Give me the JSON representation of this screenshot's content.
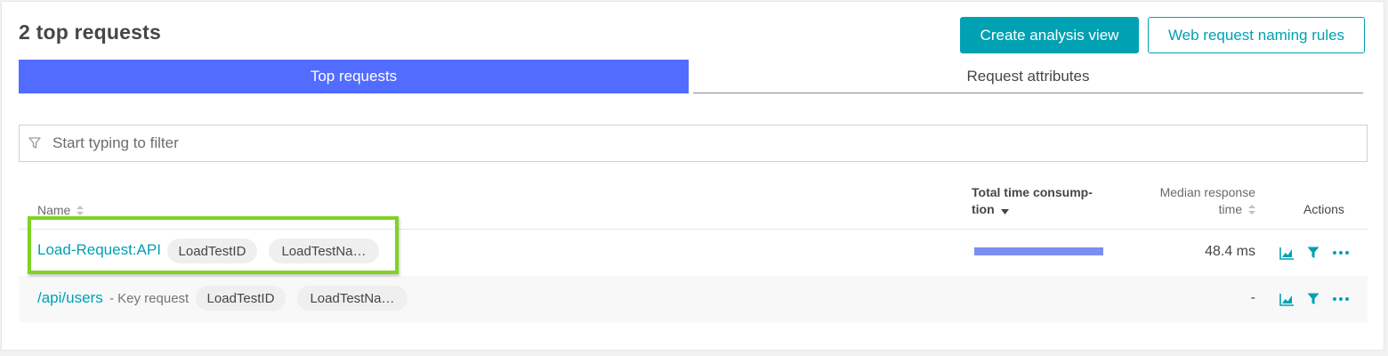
{
  "header": {
    "title": "2 top requests",
    "create_analysis_label": "Create analysis view",
    "naming_rules_label": "Web request naming rules"
  },
  "tabs": [
    {
      "label": "Top requests",
      "active": true
    },
    {
      "label": "Request attributes",
      "active": false
    }
  ],
  "filter": {
    "placeholder": "Start typing to filter",
    "value": ""
  },
  "table": {
    "columns": {
      "name": "Name",
      "total_time": "Total time consump-",
      "total_time_2": "tion",
      "median": "Median response",
      "median_2": "time",
      "actions": "Actions"
    },
    "rows": [
      {
        "name": "Load-Request:API",
        "key_label": "",
        "chips": [
          "LoadTestID",
          "LoadTestNa…"
        ],
        "total_time_fraction": 1.0,
        "median": "48.4 ms"
      },
      {
        "name": "/api/users",
        "key_label": "- Key request",
        "chips": [
          "LoadTestID",
          "LoadTestNa…"
        ],
        "total_time_fraction": 0,
        "median": "-"
      }
    ]
  },
  "icons": {
    "filter": "filter-icon",
    "sort": "sort-icon",
    "sort_desc": "sort-desc-icon",
    "chart": "chart-icon",
    "funnel": "funnel-icon",
    "more": "more-icon"
  },
  "colors": {
    "accent": "#00a1b2",
    "tab_active": "#526cff",
    "bar": "#7c8ef2",
    "highlight": "#7ed321"
  }
}
